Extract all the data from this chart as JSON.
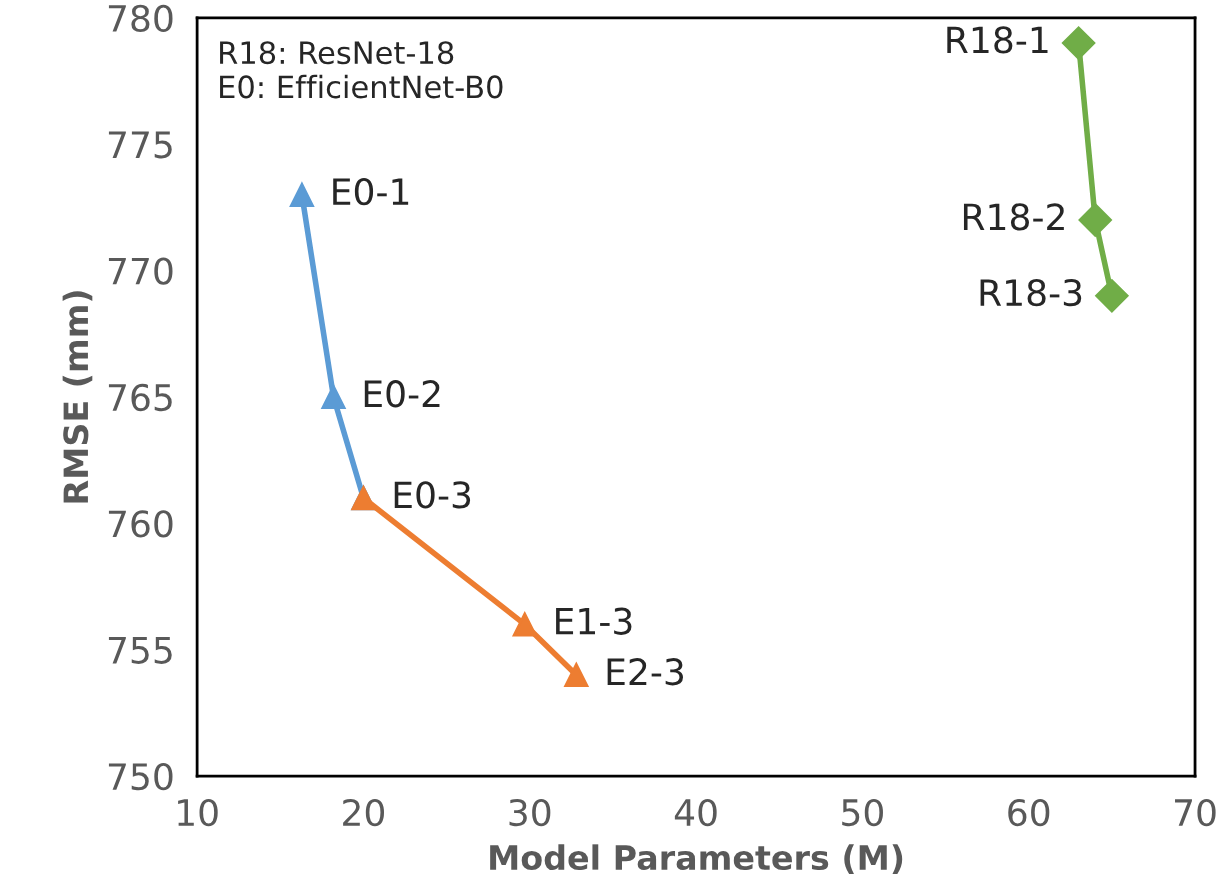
{
  "chart_data": {
    "type": "line",
    "xlabel": "Model Parameters (M)",
    "ylabel": "RMSE (mm)",
    "xlim": [
      10,
      70
    ],
    "xticks": [
      10,
      20,
      30,
      40,
      50,
      60,
      70
    ],
    "ylim": [
      750,
      780
    ],
    "yticks": [
      750,
      755,
      760,
      765,
      770,
      775,
      780
    ],
    "grid": false,
    "series": [
      {
        "color": "#5b9bd5",
        "marker": "triangle",
        "x": [
          16.3,
          18.2,
          20
        ],
        "values": [
          773,
          765,
          761
        ]
      },
      {
        "color": "#ed7d31",
        "marker": "triangle",
        "x": [
          20,
          29.7,
          32.8
        ],
        "values": [
          761,
          756,
          754
        ]
      },
      {
        "color": "#70ad47",
        "marker": "diamond",
        "x": [
          63,
          64,
          65
        ],
        "values": [
          779,
          772,
          769
        ]
      }
    ],
    "annotations": [
      "R18: ResNet-18\nE0: EfficientNet-B0",
      {
        "text": "E0-1",
        "x": 16.3,
        "y": 773
      },
      {
        "text": "E0-2",
        "x": 18.2,
        "y": 765
      },
      {
        "text": "E0-3",
        "x": 20,
        "y": 761
      },
      {
        "text": "E1-3",
        "x": 29.7,
        "y": 756
      },
      {
        "text": "E2-3",
        "x": 32.8,
        "y": 754
      },
      {
        "text": "R18-1",
        "x": 63,
        "y": 779
      },
      {
        "text": "R18-2",
        "x": 64,
        "y": 772
      },
      {
        "text": "R18-3",
        "x": 65,
        "y": 769
      }
    ]
  }
}
